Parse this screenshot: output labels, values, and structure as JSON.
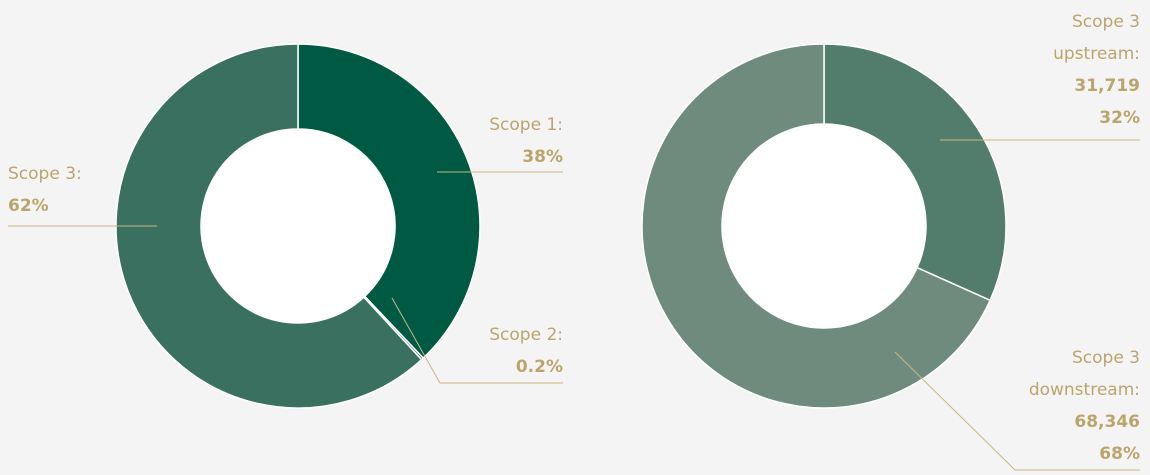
{
  "chart_data": [
    {
      "type": "donut",
      "categories": [
        "Scope 1:",
        "Scope 2:",
        "Scope 3:"
      ],
      "values": [
        38,
        0.2,
        62
      ],
      "value_labels": [
        "38%",
        "0.2%",
        "62%"
      ],
      "colors": [
        "#005a43",
        "#1f6550",
        "#3a7060"
      ]
    },
    {
      "type": "donut",
      "categories": [
        "Scope 3 upstream:",
        "Scope 3 downstream:"
      ],
      "values": [
        31719,
        68346
      ],
      "value_labels": [
        "31,719",
        "68,346"
      ],
      "percents": [
        32,
        68
      ],
      "percent_labels": [
        "32%",
        "68%"
      ],
      "colors": [
        "#527d6d",
        "#6f8b7e"
      ]
    }
  ]
}
